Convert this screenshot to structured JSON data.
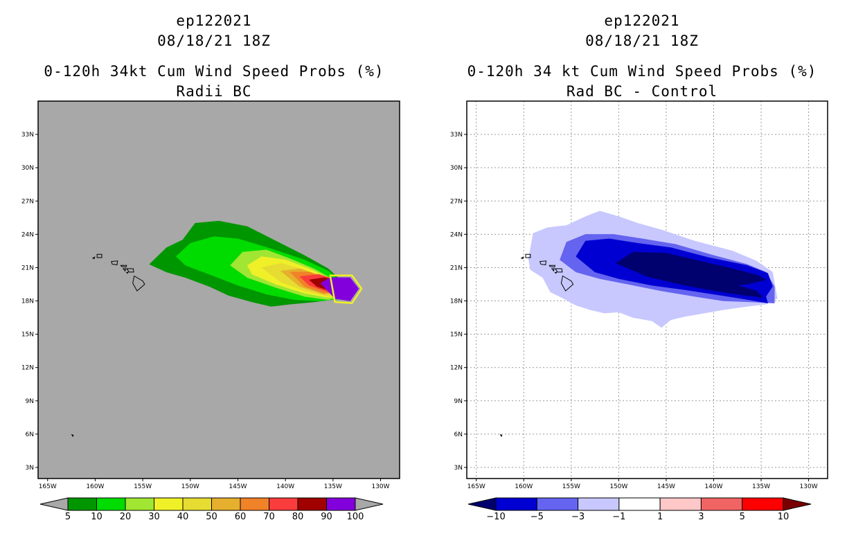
{
  "left_panel": {
    "storm_id": "ep122021",
    "date": "08/18/21 18Z",
    "title": "0-120h 34kt Cum Wind Speed Probs (%)",
    "subtitle": "Radii BC",
    "background": "#a8a8a8"
  },
  "right_panel": {
    "storm_id": "ep122021",
    "date": "08/18/21 18Z",
    "title": "0-120h 34 kt Cum Wind Speed Probs (%)",
    "subtitle": "Rad BC - Control",
    "background": "#ffffff"
  },
  "chart_data": [
    {
      "type": "heatmap",
      "title": "0-120h 34kt Cum Wind Speed Probs (%) - Radii BC",
      "x_ticks": [
        "165W",
        "160W",
        "155W",
        "150W",
        "145W",
        "140W",
        "135W",
        "130W"
      ],
      "x_tick_values": [
        -165,
        -160,
        -155,
        -150,
        -145,
        -140,
        -135,
        -130
      ],
      "y_ticks": [
        "3N",
        "6N",
        "9N",
        "12N",
        "15N",
        "18N",
        "21N",
        "24N",
        "27N",
        "30N",
        "33N"
      ],
      "y_tick_values": [
        3,
        6,
        9,
        12,
        15,
        18,
        21,
        24,
        27,
        30,
        33
      ],
      "xlim": [
        -166,
        -128
      ],
      "ylim": [
        2,
        36
      ],
      "grid": false,
      "colorbar_levels": [
        "5",
        "10",
        "20",
        "30",
        "40",
        "50",
        "60",
        "70",
        "80",
        "90",
        "100"
      ],
      "colorbar_colors": [
        "#009600",
        "#00dc00",
        "#a0e632",
        "#f0f028",
        "#e6dc32",
        "#e6af2d",
        "#f08228",
        "#fa3c3c",
        "#a00000",
        "#8200dc"
      ],
      "colorbar_ends": [
        "#a8a8a8",
        "#a8a8a8"
      ],
      "contours": [
        {
          "level": 5,
          "color": "#009600",
          "points": [
            [
              -154.3,
              21.3
            ],
            [
              -152.5,
              22.8
            ],
            [
              -150.8,
              23.5
            ],
            [
              -149.5,
              25.0
            ],
            [
              -147,
              25.2
            ],
            [
              -144,
              24.7
            ],
            [
              -141,
              23.4
            ],
            [
              -138,
              22.1
            ],
            [
              -135.5,
              20.9
            ],
            [
              -134,
              19.7
            ],
            [
              -133.5,
              18.3
            ],
            [
              -137,
              17.9
            ],
            [
              -139.5,
              17.7
            ],
            [
              -141.5,
              17.5
            ],
            [
              -143.5,
              17.9
            ],
            [
              -146,
              18.5
            ],
            [
              -148,
              19.3
            ],
            [
              -150.5,
              20.1
            ],
            [
              -152.5,
              20.6
            ]
          ]
        },
        {
          "level": 10,
          "color": "#00dc00",
          "points": [
            [
              -151.5,
              22.0
            ],
            [
              -150,
              23.2
            ],
            [
              -147.5,
              23.8
            ],
            [
              -145,
              23.6
            ],
            [
              -141.5,
              22.7
            ],
            [
              -138,
              21.7
            ],
            [
              -135.5,
              20.7
            ],
            [
              -133.6,
              19.3
            ],
            [
              -133.8,
              18.2
            ],
            [
              -136.5,
              18.0
            ],
            [
              -139,
              18.1
            ],
            [
              -142,
              18.6
            ],
            [
              -145,
              19.4
            ],
            [
              -148,
              20.4
            ],
            [
              -150.5,
              21.2
            ]
          ]
        },
        {
          "level": 20,
          "color": "#a0e632",
          "points": [
            [
              -145.8,
              21.2
            ],
            [
              -144.5,
              22.4
            ],
            [
              -142,
              22.6
            ],
            [
              -139.5,
              21.8
            ],
            [
              -137,
              20.9
            ],
            [
              -134.7,
              19.8
            ],
            [
              -133.6,
              18.5
            ],
            [
              -135.5,
              18.1
            ],
            [
              -138,
              18.4
            ],
            [
              -141,
              19.2
            ],
            [
              -144,
              20.1
            ]
          ]
        },
        {
          "level": 30,
          "color": "#f0f028",
          "points": [
            [
              -144,
              21.2
            ],
            [
              -142.5,
              22.0
            ],
            [
              -140,
              21.7
            ],
            [
              -137.5,
              20.9
            ],
            [
              -134.8,
              19.8
            ],
            [
              -133.6,
              18.6
            ],
            [
              -135.5,
              18.3
            ],
            [
              -138,
              18.7
            ],
            [
              -141,
              19.5
            ],
            [
              -143.5,
              20.4
            ]
          ]
        },
        {
          "level": 40,
          "color": "#e6dc32",
          "points": [
            [
              -142.5,
              21.0
            ],
            [
              -140.5,
              21.4
            ],
            [
              -138,
              20.8
            ],
            [
              -135.2,
              19.7
            ],
            [
              -133.6,
              18.7
            ],
            [
              -135.5,
              18.4
            ],
            [
              -138,
              18.9
            ],
            [
              -140.5,
              19.7
            ]
          ]
        },
        {
          "level": 50,
          "color": "#e6af2d",
          "points": [
            [
              -140.5,
              20.7
            ],
            [
              -138.5,
              20.9
            ],
            [
              -136,
              20.2
            ],
            [
              -133.6,
              18.8
            ],
            [
              -136,
              18.6
            ],
            [
              -138.5,
              19.3
            ]
          ]
        },
        {
          "level": 60,
          "color": "#f08228",
          "points": [
            [
              -139.5,
              20.6
            ],
            [
              -137.5,
              20.6
            ],
            [
              -135.3,
              19.9
            ],
            [
              -133.6,
              18.8
            ],
            [
              -136,
              18.7
            ],
            [
              -138,
              19.3
            ]
          ]
        },
        {
          "level": 70,
          "color": "#fa3c3c",
          "points": [
            [
              -138.5,
              20.2
            ],
            [
              -136.5,
              20.4
            ],
            [
              -134.7,
              19.9
            ],
            [
              -133.8,
              18.9
            ],
            [
              -135.5,
              18.8
            ],
            [
              -137.5,
              19.4
            ]
          ]
        },
        {
          "level": 80,
          "color": "#a00000",
          "points": [
            [
              -137.5,
              19.9
            ],
            [
              -136,
              20.1
            ],
            [
              -134.5,
              19.9
            ],
            [
              -133.9,
              18.9
            ],
            [
              -135.3,
              18.9
            ],
            [
              -136.7,
              19.3
            ]
          ]
        },
        {
          "level": 90,
          "color": "#8200dc",
          "points": [
            [
              -136.3,
              19.6
            ],
            [
              -135.3,
              20.1
            ],
            [
              -133.2,
              20.1
            ],
            [
              -132.3,
              19.1
            ],
            [
              -133.2,
              18.0
            ],
            [
              -134.8,
              18.2
            ]
          ]
        }
      ],
      "outline_contour": {
        "color": "#f0f028",
        "points": [
          [
            -135.3,
            20.3
          ],
          [
            -133.0,
            20.3
          ],
          [
            -132.0,
            19.1
          ],
          [
            -133.0,
            17.8
          ],
          [
            -134.8,
            17.9
          ]
        ]
      }
    },
    {
      "type": "heatmap",
      "title": "0-120h 34 kt Cum Wind Speed Probs (%) - Rad BC - Control",
      "x_ticks": [
        "165W",
        "160W",
        "155W",
        "150W",
        "145W",
        "140W",
        "135W",
        "130W"
      ],
      "x_tick_values": [
        -165,
        -160,
        -155,
        -150,
        -145,
        -140,
        -135,
        -130
      ],
      "y_ticks": [
        "3N",
        "6N",
        "9N",
        "12N",
        "15N",
        "18N",
        "21N",
        "24N",
        "27N",
        "30N",
        "33N"
      ],
      "y_tick_values": [
        3,
        6,
        9,
        12,
        15,
        18,
        21,
        24,
        27,
        30,
        33
      ],
      "xlim": [
        -166,
        -128
      ],
      "ylim": [
        2,
        36
      ],
      "grid": true,
      "colorbar_levels": [
        "-10",
        "-5",
        "-3",
        "-1",
        "1",
        "3",
        "5",
        "10"
      ],
      "colorbar_colors": [
        "#0000d2",
        "#6464f0",
        "#c8c8ff",
        "#ffffff",
        "#ffc8c8",
        "#f06464",
        "#ff0000"
      ],
      "colorbar_ends": [
        "#00006e",
        "#780000"
      ],
      "contours": [
        {
          "level": -1,
          "color": "#c8c8ff",
          "points": [
            [
              -159.5,
              21.8
            ],
            [
              -159,
              24.1
            ],
            [
              -157.5,
              24.6
            ],
            [
              -155.5,
              24.8
            ],
            [
              -153.5,
              25.6
            ],
            [
              -152,
              26.1
            ],
            [
              -150,
              25.6
            ],
            [
              -148,
              25.0
            ],
            [
              -145.5,
              24.4
            ],
            [
              -142,
              23.4
            ],
            [
              -138,
              22.5
            ],
            [
              -135.5,
              21.6
            ],
            [
              -133.8,
              20.6
            ],
            [
              -133.3,
              18.2
            ],
            [
              -134.5,
              17.7
            ],
            [
              -136.5,
              17.5
            ],
            [
              -139,
              17.2
            ],
            [
              -141,
              16.9
            ],
            [
              -143,
              16.6
            ],
            [
              -144.5,
              16.3
            ],
            [
              -145.5,
              15.6
            ],
            [
              -146.5,
              16.2
            ],
            [
              -148.5,
              16.5
            ],
            [
              -150,
              17.0
            ],
            [
              -151.5,
              16.9
            ],
            [
              -153,
              17.2
            ],
            [
              -154.5,
              17.6
            ],
            [
              -156,
              18.3
            ],
            [
              -157.2,
              18.8
            ],
            [
              -158,
              20.1
            ],
            [
              -159.3,
              20.8
            ]
          ]
        },
        {
          "level": -3,
          "color": "#6464f0",
          "points": [
            [
              -156.2,
              21.7
            ],
            [
              -155.5,
              23.3
            ],
            [
              -153.5,
              24.0
            ],
            [
              -150.5,
              24.0
            ],
            [
              -147.5,
              23.6
            ],
            [
              -144,
              23.1
            ],
            [
              -140,
              22.1
            ],
            [
              -136.5,
              21.3
            ],
            [
              -134.5,
              20.6
            ],
            [
              -133.6,
              19.3
            ],
            [
              -133.6,
              17.8
            ],
            [
              -136,
              17.9
            ],
            [
              -139,
              18.0
            ],
            [
              -142,
              18.4
            ],
            [
              -145.5,
              18.9
            ],
            [
              -149,
              19.5
            ],
            [
              -152,
              20.0
            ],
            [
              -154.5,
              20.6
            ]
          ]
        },
        {
          "level": -5,
          "color": "#0000d2",
          "points": [
            [
              -154.5,
              22.0
            ],
            [
              -153.5,
              23.4
            ],
            [
              -151,
              23.6
            ],
            [
              -148,
              23.2
            ],
            [
              -144.5,
              22.8
            ],
            [
              -140.5,
              21.9
            ],
            [
              -136.5,
              21.2
            ],
            [
              -134.3,
              20.5
            ],
            [
              -133.8,
              19.3
            ],
            [
              -134.5,
              18.4
            ],
            [
              -134.3,
              17.8
            ],
            [
              -137,
              18.2
            ],
            [
              -140,
              18.6
            ],
            [
              -143,
              19.0
            ],
            [
              -146.5,
              19.4
            ],
            [
              -150,
              20.0
            ],
            [
              -152.5,
              20.6
            ]
          ]
        },
        {
          "level": -10,
          "color": "#00006e",
          "points": [
            [
              -150.3,
              21.4
            ],
            [
              -148.5,
              22.4
            ],
            [
              -145,
              22.3
            ],
            [
              -141.5,
              21.6
            ],
            [
              -138,
              20.9
            ],
            [
              -135.3,
              20.3
            ],
            [
              -134.5,
              19.9
            ],
            [
              -136.5,
              19.5
            ],
            [
              -137.5,
              19.4
            ],
            [
              -135.5,
              18.9
            ],
            [
              -134.8,
              18.3
            ],
            [
              -137.5,
              18.6
            ],
            [
              -140.5,
              19.0
            ],
            [
              -143.5,
              19.5
            ],
            [
              -147,
              20.2
            ]
          ]
        }
      ],
      "outline_contour": null
    }
  ]
}
